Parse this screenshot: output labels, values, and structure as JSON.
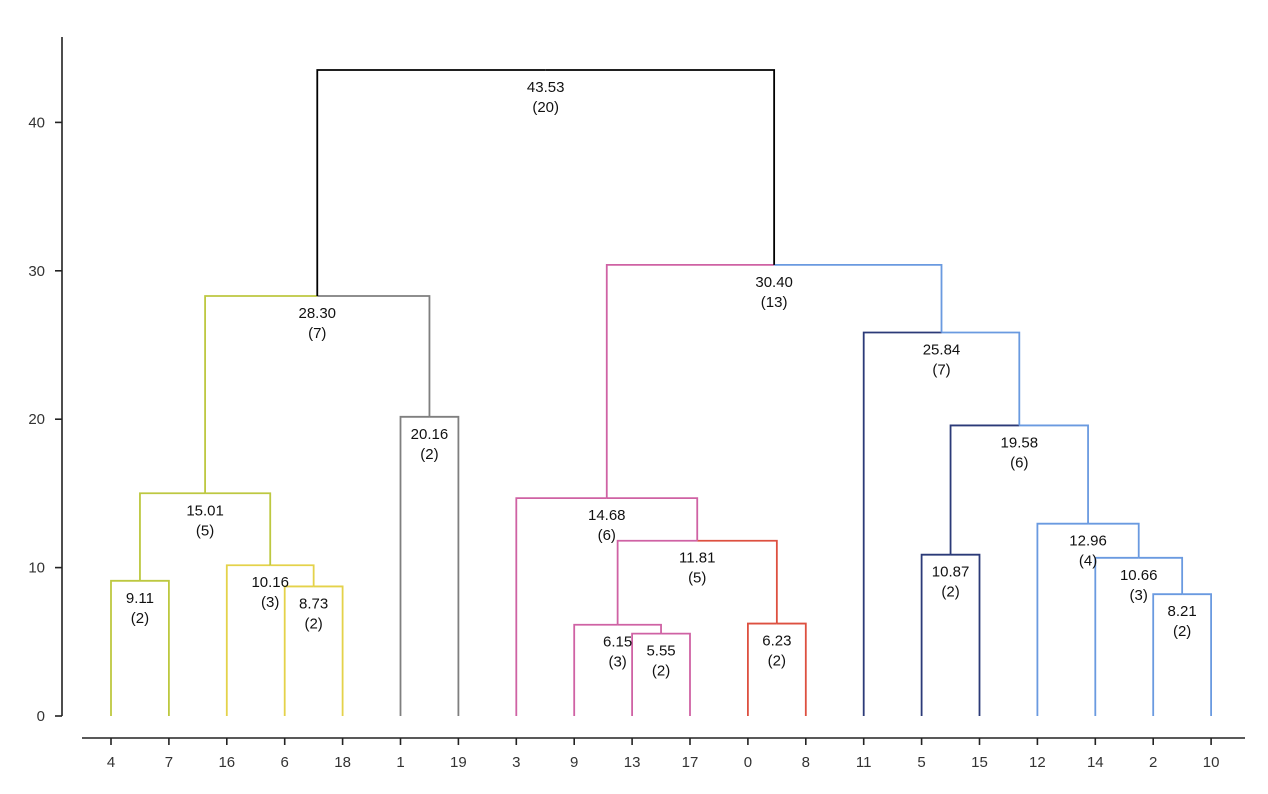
{
  "chart_data": {
    "type": "dendrogram",
    "title": "",
    "xlabel": "",
    "ylabel": "",
    "ylim": [
      0,
      45
    ],
    "yticks": [
      0,
      10,
      20,
      30,
      40
    ],
    "grid": false,
    "leaves": [
      {
        "label": "4"
      },
      {
        "label": "7"
      },
      {
        "label": "16"
      },
      {
        "label": "6"
      },
      {
        "label": "18"
      },
      {
        "label": "1"
      },
      {
        "label": "19"
      },
      {
        "label": "3"
      },
      {
        "label": "9"
      },
      {
        "label": "13"
      },
      {
        "label": "17"
      },
      {
        "label": "0"
      },
      {
        "label": "8"
      },
      {
        "label": "11"
      },
      {
        "label": "5"
      },
      {
        "label": "15"
      },
      {
        "label": "12"
      },
      {
        "label": "14"
      },
      {
        "label": "2"
      },
      {
        "label": "10"
      }
    ],
    "merges": [
      {
        "id": "m1",
        "left": 0,
        "right": 1,
        "height": 9.11,
        "value_label": "9.11",
        "count_label": "(2)",
        "color": "#bdc840"
      },
      {
        "id": "m2",
        "left": 3,
        "right": 4,
        "height": 8.73,
        "value_label": "8.73",
        "count_label": "(2)",
        "color": "#e4d24a"
      },
      {
        "id": "m3",
        "left": 2,
        "right": "m2",
        "height": 10.16,
        "value_label": "10.16",
        "count_label": "(3)",
        "color": "#e4d24a"
      },
      {
        "id": "m4",
        "left": "m1",
        "right": "m3",
        "height": 15.01,
        "value_label": "15.01",
        "count_label": "(5)",
        "color": "#bdc840"
      },
      {
        "id": "m5",
        "left": 5,
        "right": 6,
        "height": 20.16,
        "value_label": "20.16",
        "count_label": "(2)",
        "color": "#7f7f7f"
      },
      {
        "id": "m6",
        "left": "m4",
        "right": "m5",
        "height": 28.3,
        "value_label": "28.30",
        "count_label": "(7)",
        "left_color": "#bdc840",
        "right_color": "#7f7f7f"
      },
      {
        "id": "m7",
        "left": 9,
        "right": 10,
        "height": 5.55,
        "value_label": "5.55",
        "count_label": "(2)",
        "color": "#cf62a4"
      },
      {
        "id": "m8",
        "left": 8,
        "right": "m7",
        "height": 6.15,
        "value_label": "6.15",
        "count_label": "(3)",
        "color": "#cf62a4"
      },
      {
        "id": "m9",
        "left": 11,
        "right": 12,
        "height": 6.23,
        "value_label": "6.23",
        "count_label": "(2)",
        "color": "#dd5040"
      },
      {
        "id": "m10",
        "left": "m8",
        "right": "m9",
        "height": 11.81,
        "value_label": "11.81",
        "count_label": "(5)",
        "left_color": "#cf62a4",
        "right_color": "#dd5040"
      },
      {
        "id": "m11",
        "left": 7,
        "right": "m10",
        "height": 14.68,
        "value_label": "14.68",
        "count_label": "(6)",
        "color": "#cf62a4"
      },
      {
        "id": "m12",
        "left": 14,
        "right": 15,
        "height": 10.87,
        "value_label": "10.87",
        "count_label": "(2)",
        "color": "#2b3a78"
      },
      {
        "id": "m13",
        "left": 18,
        "right": 19,
        "height": 8.21,
        "value_label": "8.21",
        "count_label": "(2)",
        "color": "#6a9ae0"
      },
      {
        "id": "m14",
        "left": 17,
        "right": "m13",
        "height": 10.66,
        "value_label": "10.66",
        "count_label": "(3)",
        "color": "#6a9ae0"
      },
      {
        "id": "m15",
        "left": 16,
        "right": "m14",
        "height": 12.96,
        "value_label": "12.96",
        "count_label": "(4)",
        "color": "#6a9ae0"
      },
      {
        "id": "m16",
        "left": "m12",
        "right": "m15",
        "height": 19.58,
        "value_label": "19.58",
        "count_label": "(6)",
        "left_color": "#2b3a78",
        "right_color": "#6a9ae0"
      },
      {
        "id": "m17",
        "left": 13,
        "right": "m16",
        "height": 25.84,
        "value_label": "25.84",
        "count_label": "(7)",
        "left_color": "#2b3a78",
        "right_color": "#6a9ae0"
      },
      {
        "id": "m18",
        "left": "m11",
        "right": "m17",
        "height": 30.4,
        "value_label": "30.40",
        "count_label": "(13)",
        "left_color": "#cf62a4",
        "right_color": "#6a9ae0"
      },
      {
        "id": "m19",
        "left": "m6",
        "right": "m18",
        "height": 43.53,
        "value_label": "43.53",
        "count_label": "(20)",
        "color": "#000000"
      }
    ]
  }
}
